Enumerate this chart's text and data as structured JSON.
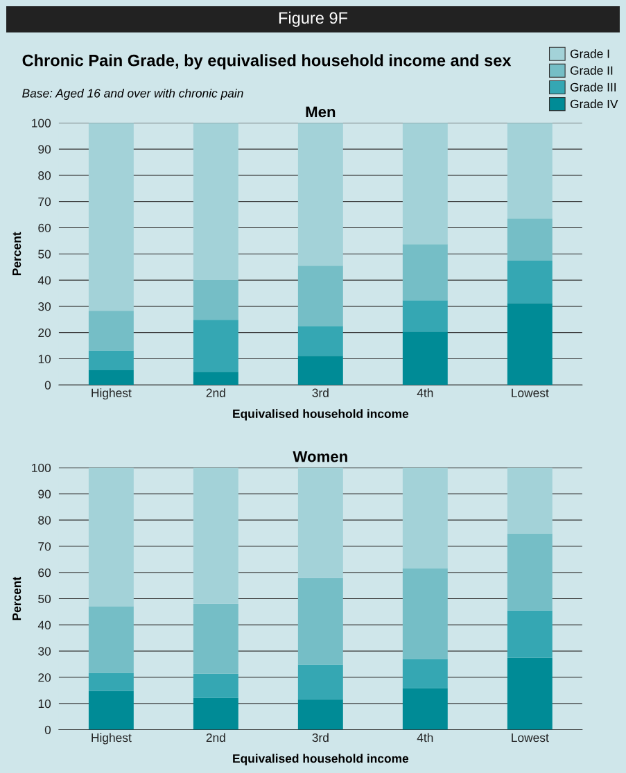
{
  "chart_data": [
    {
      "type": "bar",
      "stacked": true,
      "title": "Men",
      "subtitle": "Base: Aged 16 and over with chronic pain",
      "annotations": [
        "Figure 9F",
        "Chronic Pain Grade, by equivalised household income and sex"
      ],
      "xlabel": "Equivalised household income",
      "ylabel": "Percent",
      "categories": [
        "Highest",
        "2nd",
        "3rd",
        "4th",
        "Lowest"
      ],
      "ylim": [
        0,
        100
      ],
      "yticks": [
        0,
        10,
        20,
        30,
        40,
        50,
        60,
        70,
        80,
        90,
        100
      ],
      "grid": "y",
      "legend": "top right",
      "series": [
        {
          "name": "Grade IV",
          "color": "#008b96",
          "values": [
            5.6,
            5,
            11.1,
            20.4,
            31.2
          ]
        },
        {
          "name": "Grade III",
          "color": "#35a7b3",
          "values": [
            7.6,
            19.9,
            11.4,
            11.9,
            16.2
          ]
        },
        {
          "name": "Grade II",
          "color": "#75bec6",
          "values": [
            15.1,
            15.1,
            23,
            21.4,
            16.1
          ]
        },
        {
          "name": "Grade I",
          "color": "#a3d2d8",
          "values": [
            71.7,
            60,
            54.5,
            46.3,
            36.5
          ]
        }
      ]
    },
    {
      "type": "bar",
      "stacked": true,
      "title": "Women",
      "xlabel": "Equivalised household income",
      "ylabel": "Percent",
      "categories": [
        "Highest",
        "2nd",
        "3rd",
        "4th",
        "Lowest"
      ],
      "ylim": [
        0,
        100
      ],
      "yticks": [
        0,
        10,
        20,
        30,
        40,
        50,
        60,
        70,
        80,
        90,
        100
      ],
      "grid": "y",
      "series": [
        {
          "color": "#008b96",
          "values": [
            14.8,
            12.2,
            11.6,
            15.9,
            27.5
          ]
        },
        {
          "color": "#35a7b3",
          "values": [
            6.9,
            9.2,
            13.3,
            11.1,
            18
          ]
        },
        {
          "color": "#75bec6",
          "values": [
            25.4,
            26.7,
            33,
            34.6,
            29.4
          ]
        },
        {
          "color": "#a3d2d8",
          "values": [
            52.9,
            51.9,
            42.1,
            38.4,
            25.1
          ]
        }
      ]
    }
  ]
}
